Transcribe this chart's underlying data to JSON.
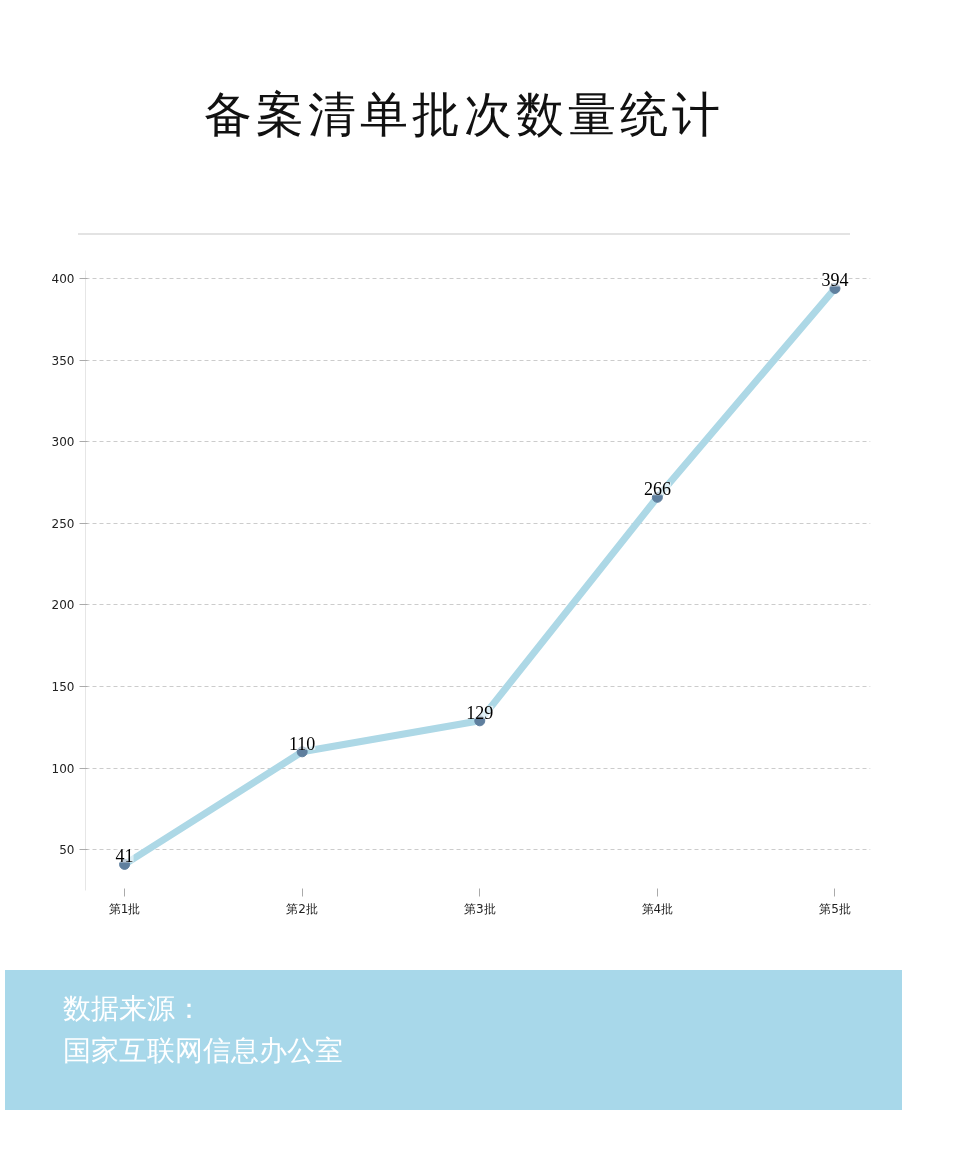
{
  "chart_data": {
    "type": "line",
    "title": "备案清单批次数量统计",
    "categories": [
      "第1批",
      "第2批",
      "第3批",
      "第4批",
      "第5批"
    ],
    "series": [
      {
        "color": "#add8e6",
        "values": [
          41,
          110,
          129,
          266,
          394
        ]
      }
    ],
    "ylim": [
      25,
      405
    ],
    "yticks": [
      50,
      100,
      150,
      200,
      250,
      300,
      350,
      400
    ],
    "grid": "y",
    "marker": "circle",
    "line_style": "solid",
    "data_labels": true,
    "annotations": [
      "数据来源：",
      "国家互联网信息办公室"
    ]
  }
}
